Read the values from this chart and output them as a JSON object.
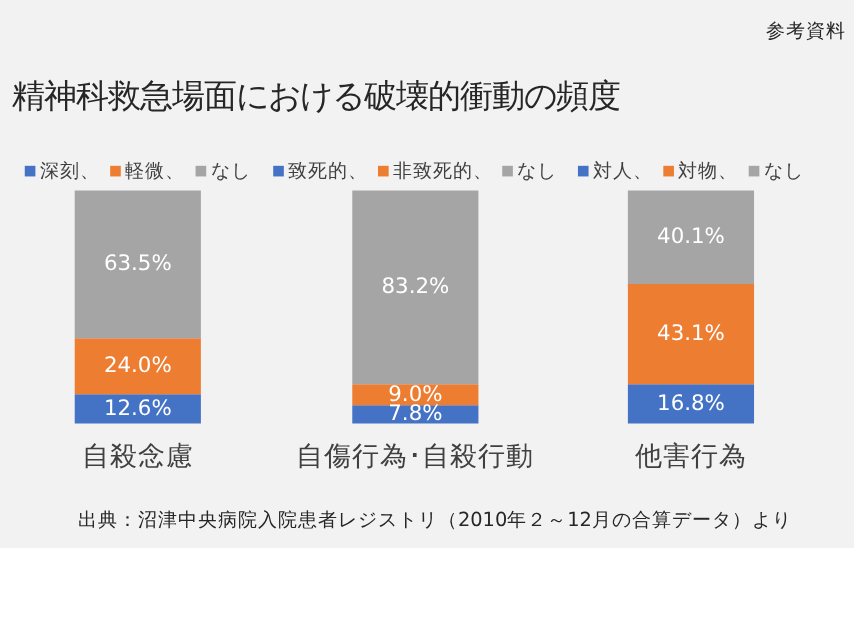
{
  "chart_data": [
    {
      "type": "bar",
      "stacked": true,
      "title": "精神科救急場面における破壊的衝動の頻度",
      "annotations": [
        "参考資料",
        "出典：沼津中央病院入院患者レジストリ（2010年２～12月の合算データ）より"
      ],
      "categories": [
        "自殺念慮"
      ],
      "legend": "top",
      "tick_labels": "x",
      "grid": false,
      "series": [
        {
          "name": "深刻、",
          "color": "#4472c4",
          "values": [
            12.6
          ],
          "value_labels": [
            "12.6%"
          ]
        },
        {
          "name": "軽微、",
          "color": "#ed7d31",
          "values": [
            24.0
          ],
          "value_labels": [
            "24.0%"
          ]
        },
        {
          "name": "なし",
          "color": "#a5a5a5",
          "values": [
            63.5
          ],
          "value_labels": [
            "63.5%"
          ]
        }
      ]
    },
    {
      "type": "bar",
      "stacked": true,
      "categories": [
        "自傷行為･自殺行動"
      ],
      "legend": "top",
      "tick_labels": "x",
      "grid": false,
      "series": [
        {
          "name": "致死的、",
          "color": "#4472c4",
          "values": [
            7.8
          ],
          "value_labels": [
            "7.8%"
          ]
        },
        {
          "name": "非致死的、",
          "color": "#ed7d31",
          "values": [
            9.0
          ],
          "value_labels": [
            "9.0%"
          ]
        },
        {
          "name": "なし",
          "color": "#a5a5a5",
          "values": [
            83.2
          ],
          "value_labels": [
            "83.2%"
          ]
        }
      ]
    },
    {
      "type": "bar",
      "stacked": true,
      "categories": [
        "他害行為"
      ],
      "legend": "top",
      "tick_labels": "x",
      "grid": false,
      "series": [
        {
          "name": "対人、",
          "color": "#4472c4",
          "values": [
            16.8
          ],
          "value_labels": [
            "16.8%"
          ]
        },
        {
          "name": "対物、",
          "color": "#ed7d31",
          "values": [
            43.1
          ],
          "value_labels": [
            "43.1%"
          ]
        },
        {
          "name": "なし",
          "color": "#a5a5a5",
          "values": [
            40.1
          ],
          "value_labels": [
            "40.1%"
          ]
        }
      ]
    }
  ]
}
